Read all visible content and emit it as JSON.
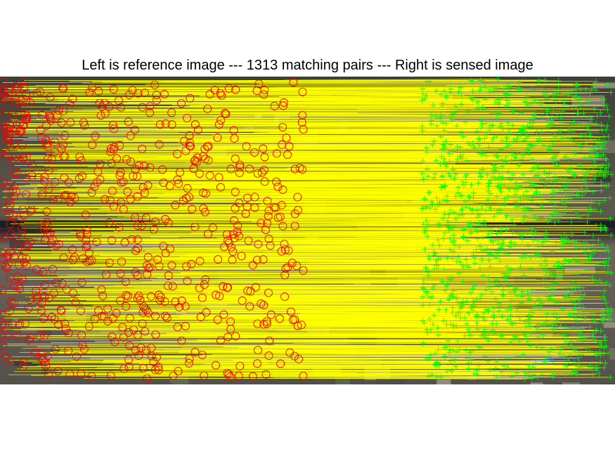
{
  "figure": {
    "title": "Left is reference image --- 1313 matching pairs --- Right is sensed image"
  },
  "colors": {
    "match_line": "#ffff00",
    "reference_marker": "#ff0000",
    "sensed_marker": "#00ff00",
    "background": "#ffffff"
  },
  "matches": {
    "count": 1313
  }
}
